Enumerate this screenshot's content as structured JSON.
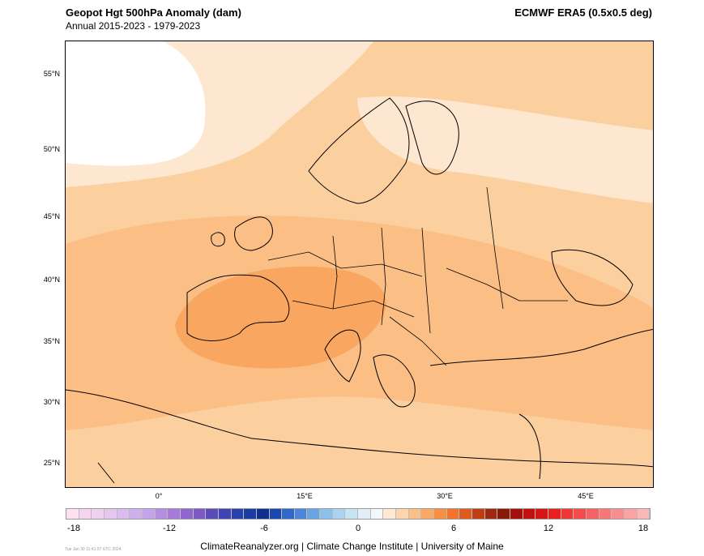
{
  "header": {
    "title": "Geopot Hgt 500hPa Anomaly (dam)",
    "subtitle": "Annual 2015-2023 - 1979-2023",
    "source": "ECMWF ERA5 (0.5x0.5 deg)"
  },
  "map": {
    "lat_labels": [
      "55°N",
      "50°N",
      "45°N",
      "40°N",
      "35°N",
      "30°N",
      "25°N"
    ],
    "lon_labels": [
      "0°",
      "15°E",
      "30°E",
      "45°E"
    ],
    "colors": {
      "ocean_base": "#fccf9f",
      "pale": "#fde7d0",
      "neutral": "#ffffff",
      "mid": "#fbbf86",
      "strong": "#f9a660",
      "coast": "#000000"
    }
  },
  "colorbar": {
    "ticks": [
      "-18",
      "-12",
      "-6",
      "0",
      "6",
      "12",
      "18"
    ],
    "colors": [
      "#fce1ef",
      "#f5d5ee",
      "#eed0f0",
      "#e4c6f0",
      "#dbbcee",
      "#cfb0ec",
      "#c4a3e8",
      "#b48ee0",
      "#a57ad8",
      "#9167cf",
      "#7c5ac6",
      "#5b4cbc",
      "#3f45b3",
      "#2a41ad",
      "#1a3ca6",
      "#0f2f91",
      "#1848b0",
      "#2f68c9",
      "#4b86d9",
      "#6aa5e3",
      "#8bc0eb",
      "#a9d3f0",
      "#c6e3f4",
      "#e1eef7",
      "#f4f7fa",
      "#fde9d4",
      "#fcd5ad",
      "#fbc08a",
      "#f9a866",
      "#f78f45",
      "#f3742c",
      "#e05a1c",
      "#c03d12",
      "#a0280c",
      "#8a1a08",
      "#a6100c",
      "#c0100f",
      "#d81515",
      "#e92020",
      "#f23535",
      "#f44c4c",
      "#f66262",
      "#f87878",
      "#fa8e8e",
      "#fba4a4",
      "#fcb8b8"
    ]
  },
  "footer": {
    "credit": "ClimateReanalyzer.org | Climate Change Institute | University of Maine",
    "stamp": "Tue Jan 30 11:41:07 UTC 2024"
  }
}
